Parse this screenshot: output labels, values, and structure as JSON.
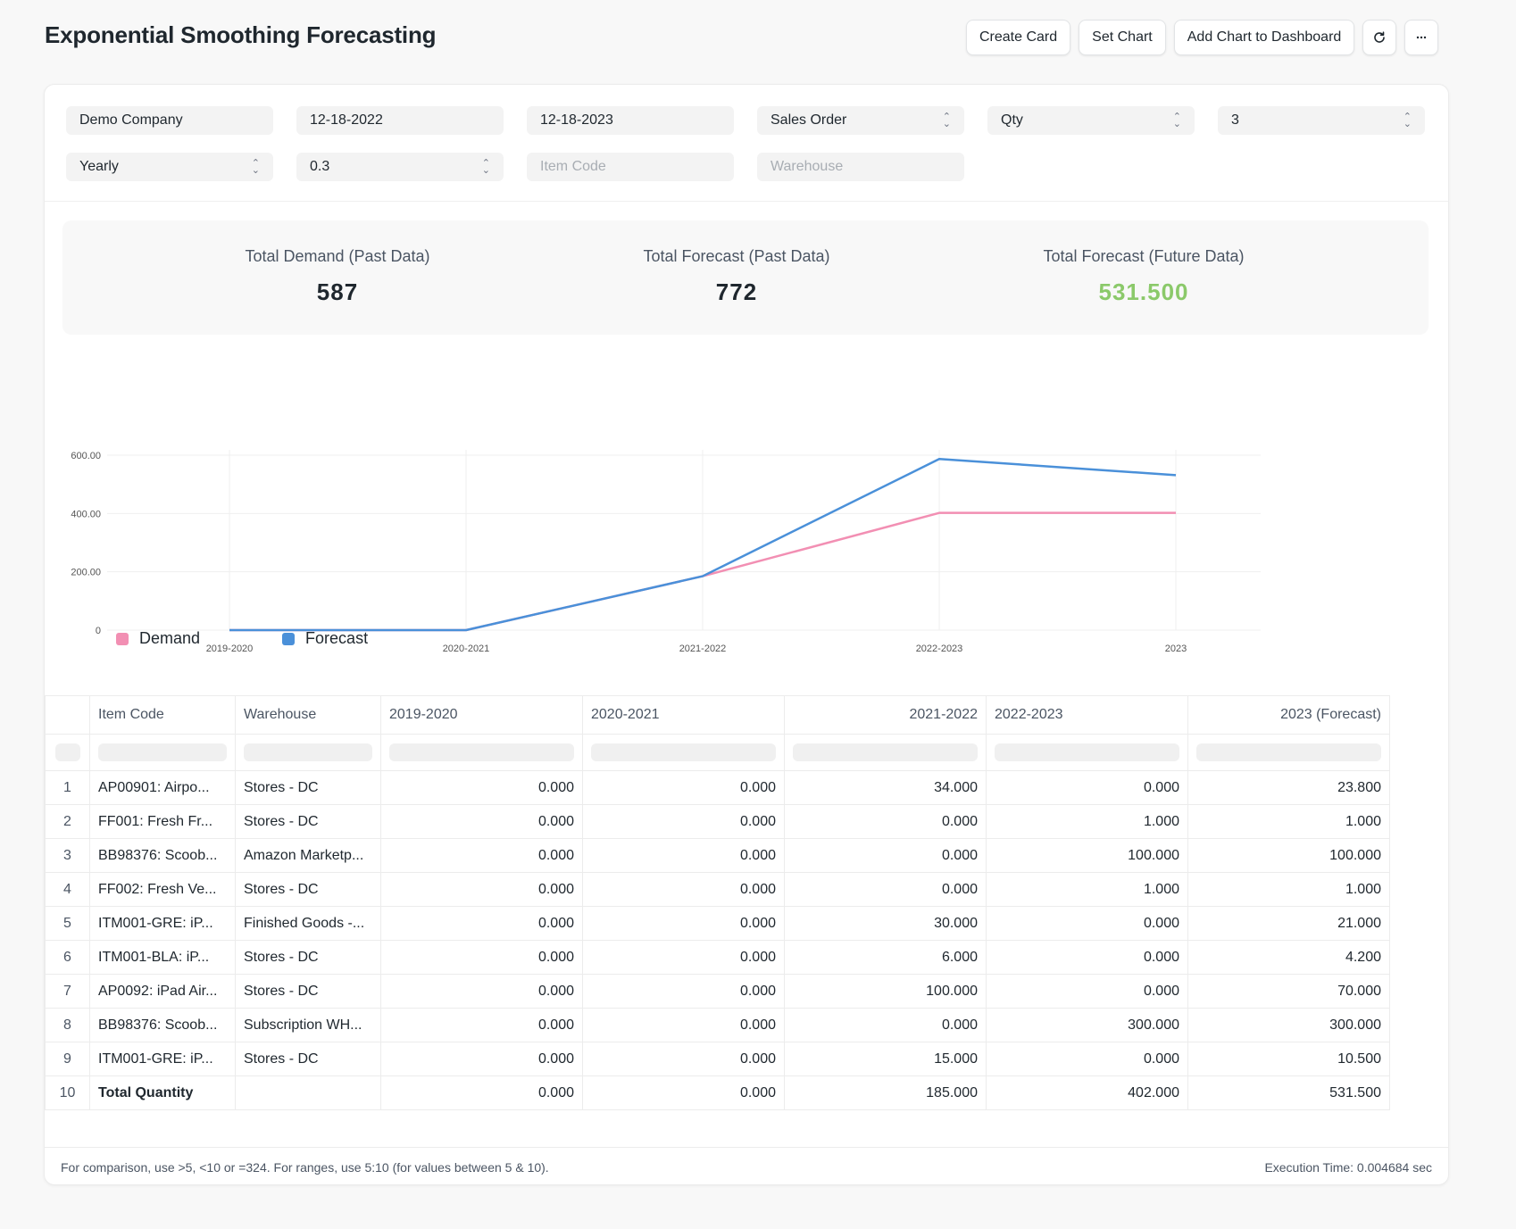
{
  "header": {
    "title": "Exponential Smoothing Forecasting",
    "buttons": {
      "create_card": "Create Card",
      "set_chart": "Set Chart",
      "add_chart": "Add Chart to Dashboard"
    },
    "icons": {
      "refresh": "refresh-icon",
      "more": "more-horizontal-icon",
      "more_glyph": "···",
      "refresh_glyph": "↻"
    }
  },
  "filters": {
    "company": "Demo Company",
    "from_date": "12-18-2022",
    "to_date": "12-18-2023",
    "based_on_document": "Sales Order",
    "based_on_field": "Qty",
    "no_of_years": "3",
    "periodicity": "Yearly",
    "smoothing_constant": "0.3",
    "item_code_placeholder": "Item Code",
    "warehouse_placeholder": "Warehouse"
  },
  "summary": {
    "total_demand_label": "Total Demand (Past Data)",
    "total_demand_value": "587",
    "total_forecast_past_label": "Total Forecast (Past Data)",
    "total_forecast_past_value": "772",
    "total_forecast_future_label": "Total Forecast (Future Data)",
    "total_forecast_future_value": "531.500",
    "colors": {
      "future_value": "#8bc96a"
    }
  },
  "chart_data": {
    "type": "line",
    "categories": [
      "2019-2020",
      "2020-2021",
      "2021-2022",
      "2022-2023",
      "2023"
    ],
    "series": [
      {
        "name": "Demand",
        "color": "#f28fb3",
        "values": [
          0,
          0,
          185,
          402,
          402
        ]
      },
      {
        "name": "Forecast",
        "color": "#4a90d9",
        "values": [
          0,
          0,
          185,
          587,
          531.5
        ]
      }
    ],
    "y_ticks": [
      "0",
      "200.00",
      "400.00",
      "600.00"
    ],
    "ylim": [
      0,
      600
    ],
    "grid": true,
    "legend": "bottom-left"
  },
  "table": {
    "columns": [
      "Item Code",
      "Warehouse",
      "2019-2020",
      "2020-2021",
      "2021-2022",
      "2022-2023",
      "2023 (Forecast)"
    ],
    "rows": [
      {
        "idx": "1",
        "item": "AP00901: Airpo...",
        "warehouse": "Stores - DC",
        "v": [
          "0.000",
          "0.000",
          "34.000",
          "0.000",
          "23.800"
        ]
      },
      {
        "idx": "2",
        "item": "FF001: Fresh Fr...",
        "warehouse": "Stores - DC",
        "v": [
          "0.000",
          "0.000",
          "0.000",
          "1.000",
          "1.000"
        ]
      },
      {
        "idx": "3",
        "item": "BB98376: Scoob...",
        "warehouse": "Amazon Marketp...",
        "v": [
          "0.000",
          "0.000",
          "0.000",
          "100.000",
          "100.000"
        ]
      },
      {
        "idx": "4",
        "item": "FF002: Fresh Ve...",
        "warehouse": "Stores - DC",
        "v": [
          "0.000",
          "0.000",
          "0.000",
          "1.000",
          "1.000"
        ]
      },
      {
        "idx": "5",
        "item": "ITM001-GRE: iP...",
        "warehouse": "Finished Goods -...",
        "v": [
          "0.000",
          "0.000",
          "30.000",
          "0.000",
          "21.000"
        ]
      },
      {
        "idx": "6",
        "item": "ITM001-BLA: iP...",
        "warehouse": "Stores - DC",
        "v": [
          "0.000",
          "0.000",
          "6.000",
          "0.000",
          "4.200"
        ]
      },
      {
        "idx": "7",
        "item": "AP0092: iPad Air...",
        "warehouse": "Stores - DC",
        "v": [
          "0.000",
          "0.000",
          "100.000",
          "0.000",
          "70.000"
        ]
      },
      {
        "idx": "8",
        "item": "BB98376: Scoob...",
        "warehouse": "Subscription WH...",
        "v": [
          "0.000",
          "0.000",
          "0.000",
          "300.000",
          "300.000"
        ]
      },
      {
        "idx": "9",
        "item": "ITM001-GRE: iP...",
        "warehouse": "Stores - DC",
        "v": [
          "0.000",
          "0.000",
          "15.000",
          "0.000",
          "10.500"
        ]
      },
      {
        "idx": "10",
        "item": "Total Quantity",
        "warehouse": "",
        "v": [
          "0.000",
          "0.000",
          "185.000",
          "402.000",
          "531.500"
        ]
      }
    ]
  },
  "footer": {
    "hint": "For comparison, use >5, <10 or =324. For ranges, use 5:10 (for values between 5 & 10).",
    "execution_time": "Execution Time: 0.004684 sec"
  }
}
